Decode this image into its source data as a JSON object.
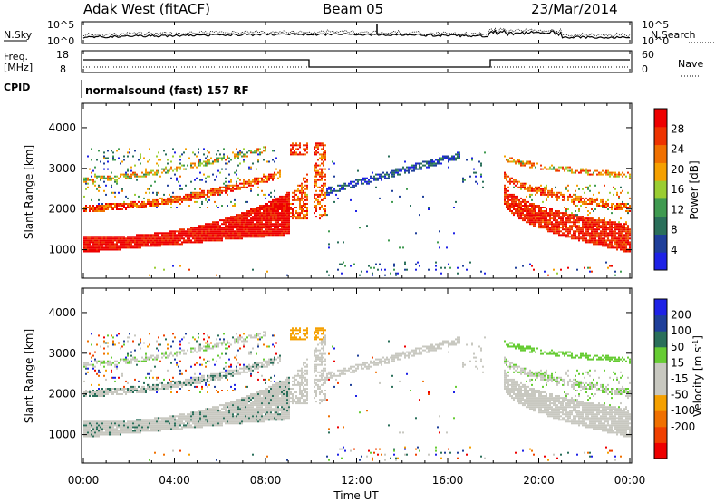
{
  "header": {
    "station": "Adak West (fitACF)",
    "beam": "Beam 05",
    "date": "23/Mar/2014"
  },
  "panels": {
    "nsky_label": "N.Sky",
    "nsearch_label": "N.Search",
    "noise_ticks_left": [
      "10^5",
      "10^0"
    ],
    "noise_ticks_right": [
      "10^5",
      "10^0"
    ],
    "freq_label": "Freq.",
    "freq_unit": "[MHz]",
    "freq_ticks": [
      "18",
      "8"
    ],
    "nave_label": "Nave",
    "nave_ticks": [
      "60",
      "0"
    ],
    "cpid_label": "CPID",
    "cpid_text": "normalsound (fast) 157 RF"
  },
  "colors": {
    "power_scale": [
      "#1e22e6",
      "#1f3f9a",
      "#2a6f5a",
      "#3f9a50",
      "#9acd32",
      "#f5a000",
      "#f07000",
      "#ee3300",
      "#ee0000"
    ],
    "velocity_scale": [
      "#ee0000",
      "#f04000",
      "#f07000",
      "#f5a000",
      "#c8c8c0",
      "#c8c8c0",
      "#66cc33",
      "#2a6f5a",
      "#1f3f9a",
      "#1e22e6"
    ]
  },
  "chart_data": [
    {
      "type": "heatmap",
      "name": "power",
      "ylabel": "Slant Range [km]",
      "colorbar_label": "Power [dB]",
      "colorbar_ticks": [
        4,
        8,
        12,
        16,
        20,
        24,
        28
      ],
      "y_ticks": [
        1000,
        2000,
        3000,
        4000
      ],
      "ylim": [
        300,
        4600
      ],
      "xlim": [
        0,
        24
      ]
    },
    {
      "type": "heatmap",
      "name": "velocity",
      "ylabel": "Slant Range [km]",
      "colorbar_label": "Velocity [m s^-1]",
      "colorbar_ticks": [
        200,
        100,
        50,
        15,
        -15,
        -50,
        -100,
        -200
      ],
      "y_ticks": [
        1000,
        2000,
        3000,
        4000
      ],
      "ylim": [
        300,
        4600
      ],
      "xlim": [
        0,
        24
      ]
    }
  ],
  "xaxis": {
    "ticks": [
      "00:00",
      "04:00",
      "08:00",
      "12:00",
      "16:00",
      "20:00",
      "00:00"
    ],
    "tick_hours": [
      0,
      4,
      8,
      12,
      16,
      20,
      24
    ],
    "label": "Time UT"
  }
}
